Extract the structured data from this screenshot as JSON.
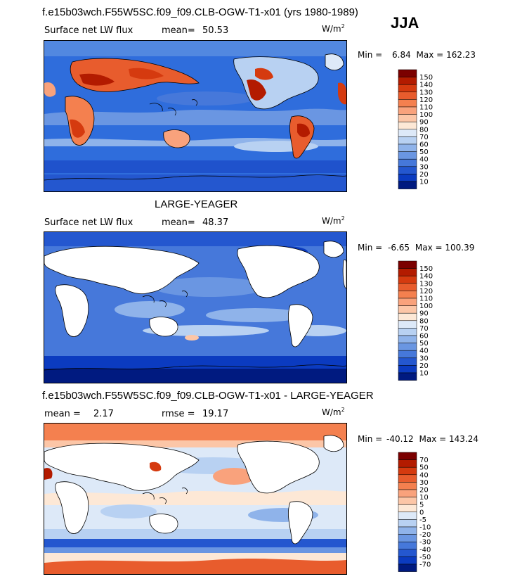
{
  "header": {
    "season": "JJA"
  },
  "chart_data": [
    {
      "type": "heatmap",
      "title": "f.e15b03wch.F55W5SC.f09_f09.CLB-OGW-T1-x01 (yrs 1980-1989)",
      "variable": "Surface net LW flux",
      "stat_label": "mean=",
      "stat_value": "50.53",
      "units_base": "W/m",
      "units_exp": "2",
      "min_label": "Min =",
      "min_value": "6.84",
      "max_label": "Max =",
      "max_value": "162.23",
      "colorbar_levels": [
        "150",
        "140",
        "130",
        "120",
        "110",
        "100",
        "90",
        "80",
        "70",
        "60",
        "50",
        "40",
        "30",
        "20",
        "10"
      ],
      "colorbar_colors": [
        "#7b0000",
        "#b31b00",
        "#d53a0f",
        "#e85c2d",
        "#f4804f",
        "#f9a27c",
        "#fcc6a7",
        "#fde8d6",
        "#dde9f8",
        "#b8d1f2",
        "#8fb3ea",
        "#6a96e2",
        "#4678da",
        "#2457cf",
        "#0b3bc0",
        "#001a80"
      ]
    },
    {
      "type": "heatmap",
      "title": "LARGE-YEAGER",
      "variable": "Surface net LW flux",
      "stat_label": "mean=",
      "stat_value": "48.37",
      "units_base": "W/m",
      "units_exp": "2",
      "min_label": "Min =",
      "min_value": "-6.65",
      "max_label": "Max =",
      "max_value": "100.39",
      "colorbar_levels": [
        "150",
        "140",
        "130",
        "120",
        "110",
        "100",
        "90",
        "80",
        "70",
        "60",
        "50",
        "40",
        "30",
        "20",
        "10"
      ],
      "colorbar_colors": [
        "#7b0000",
        "#b31b00",
        "#d53a0f",
        "#e85c2d",
        "#f4804f",
        "#f9a27c",
        "#fcc6a7",
        "#fde8d6",
        "#dde9f8",
        "#b8d1f2",
        "#8fb3ea",
        "#6a96e2",
        "#4678da",
        "#2457cf",
        "#0b3bc0",
        "#001a80"
      ]
    },
    {
      "type": "heatmap",
      "title": "f.e15b03wch.F55W5SC.f09_f09.CLB-OGW-T1-x01 - LARGE-YEAGER",
      "stat_label": "mean =",
      "stat_value": "2.17",
      "stat2_label": "rmse =",
      "stat2_value": "19.17",
      "units_base": "W/m",
      "units_exp": "2",
      "min_label": "Min =",
      "min_value": "-40.12",
      "max_label": "Max =",
      "max_value": "143.24",
      "colorbar_levels": [
        "70",
        "50",
        "40",
        "30",
        "20",
        "10",
        "5",
        "0",
        "-5",
        "-10",
        "-20",
        "-30",
        "-40",
        "-50",
        "-70"
      ],
      "colorbar_colors": [
        "#7b0000",
        "#b31b00",
        "#d53a0f",
        "#e85c2d",
        "#f4804f",
        "#f9a27c",
        "#fcc6a7",
        "#fde8d6",
        "#dde9f8",
        "#b8d1f2",
        "#8fb3ea",
        "#6a96e2",
        "#4678da",
        "#2457cf",
        "#0b3bc0",
        "#001a80"
      ]
    }
  ]
}
